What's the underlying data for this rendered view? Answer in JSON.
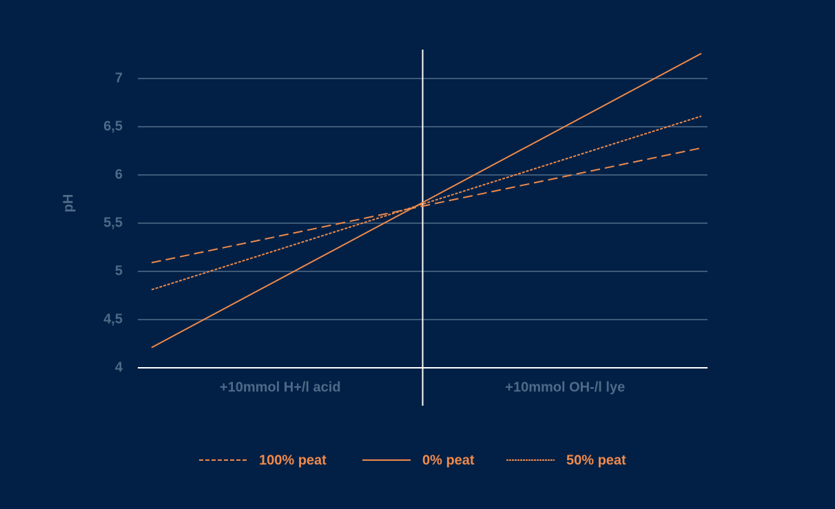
{
  "chart_data": {
    "type": "line",
    "y_label": "pH",
    "categories": [
      "+10mmol H+/l acid",
      "+10mmol OH-/l lye"
    ],
    "series": [
      {
        "name": "100% peat",
        "color": "#f08a4b",
        "dash": "14 7",
        "values": [
          5.09,
          6.28
        ]
      },
      {
        "name": "0% peat",
        "color": "#f08a4b",
        "dash": "none",
        "values": [
          4.21,
          7.26
        ]
      },
      {
        "name": "50% peat",
        "color": "#f08a4b",
        "dash": "4 2",
        "values": [
          4.81,
          6.61
        ]
      }
    ],
    "ylim": [
      4,
      7.3
    ],
    "yticks": [
      4,
      {
        "value": 4.5,
        "label": "4,5"
      },
      5,
      {
        "value": 5.5,
        "label": "5,5"
      },
      6,
      {
        "value": 6.5,
        "label": "6,5"
      },
      7
    ],
    "grid": true
  }
}
